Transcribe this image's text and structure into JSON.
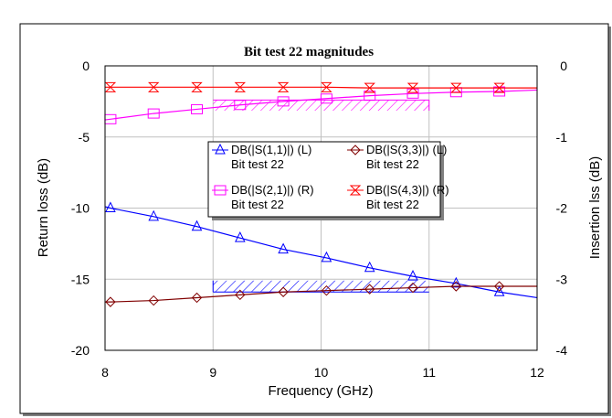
{
  "chart_data": {
    "type": "line",
    "title": "Bit test 22 magnitudes",
    "xlabel": "Frequency (GHz)",
    "ylabel_left": "Return loss (dB)",
    "ylabel_right": "Insertion lss (dB)",
    "xlim": [
      8,
      12
    ],
    "ylim_left": [
      -20,
      0
    ],
    "ylim_right": [
      -4,
      0
    ],
    "xticks": [
      "8",
      "9",
      "10",
      "11",
      "12"
    ],
    "yticks_left": [
      "0",
      "-5",
      "-10",
      "-15",
      "-20"
    ],
    "yticks_right": [
      "0",
      "-1",
      "-2",
      "-3",
      "-4"
    ],
    "grid": true,
    "legend_position": "center-left",
    "series": [
      {
        "name": "DB(|S(1,1)|) (L)",
        "subtitle": "Bit test 22",
        "axis": "left",
        "color": "#0000ff",
        "marker": "triangle",
        "x": [
          8,
          8.05,
          8.45,
          8.85,
          9.25,
          9.65,
          10.05,
          10.45,
          10.85,
          11.25,
          11.65,
          12
        ],
        "y": [
          -9.9,
          -10.0,
          -10.6,
          -11.3,
          -12.1,
          -12.9,
          -13.5,
          -14.2,
          -14.8,
          -15.3,
          -15.9,
          -16.3
        ]
      },
      {
        "name": "DB(|S(3,3)|) (L)",
        "subtitle": "Bit test 22",
        "axis": "left",
        "color": "#800000",
        "marker": "diamond",
        "x": [
          8,
          8.05,
          8.45,
          8.85,
          9.25,
          9.65,
          10.05,
          10.45,
          10.85,
          11.25,
          11.65,
          12
        ],
        "y": [
          -16.6,
          -16.6,
          -16.5,
          -16.3,
          -16.1,
          -15.9,
          -15.8,
          -15.7,
          -15.6,
          -15.5,
          -15.5,
          -15.5
        ]
      },
      {
        "name": "DB(|S(2,1)|) (R)",
        "subtitle": "Bit test 22",
        "axis": "right",
        "color": "#ff00ff",
        "marker": "square",
        "x": [
          8,
          8.05,
          8.45,
          8.85,
          9.25,
          9.65,
          10.05,
          10.45,
          10.85,
          11.25,
          11.65,
          12
        ],
        "y": [
          -0.76,
          -0.75,
          -0.67,
          -0.61,
          -0.55,
          -0.5,
          -0.46,
          -0.42,
          -0.39,
          -0.37,
          -0.36,
          -0.34
        ]
      },
      {
        "name": "DB(|S(4,3)|) (R)",
        "subtitle": "Bit test 22",
        "axis": "right",
        "color": "#ff0000",
        "marker": "hourglass",
        "x": [
          8,
          8.05,
          8.45,
          8.85,
          9.25,
          9.65,
          10.05,
          10.45,
          10.85,
          11.25,
          11.65,
          12
        ],
        "y": [
          -0.3,
          -0.3,
          -0.3,
          -0.3,
          -0.3,
          -0.3,
          -0.3,
          -0.31,
          -0.31,
          -0.31,
          -0.31,
          -0.31
        ]
      }
    ],
    "masks": [
      {
        "axis": "right",
        "color": "#ff00ff",
        "x": [
          9,
          11
        ],
        "y": [
          -0.63,
          -0.48
        ]
      },
      {
        "axis": "left",
        "color": "#0000ff",
        "x": [
          9,
          11
        ],
        "y": [
          -15.9,
          -15.1
        ]
      }
    ]
  }
}
